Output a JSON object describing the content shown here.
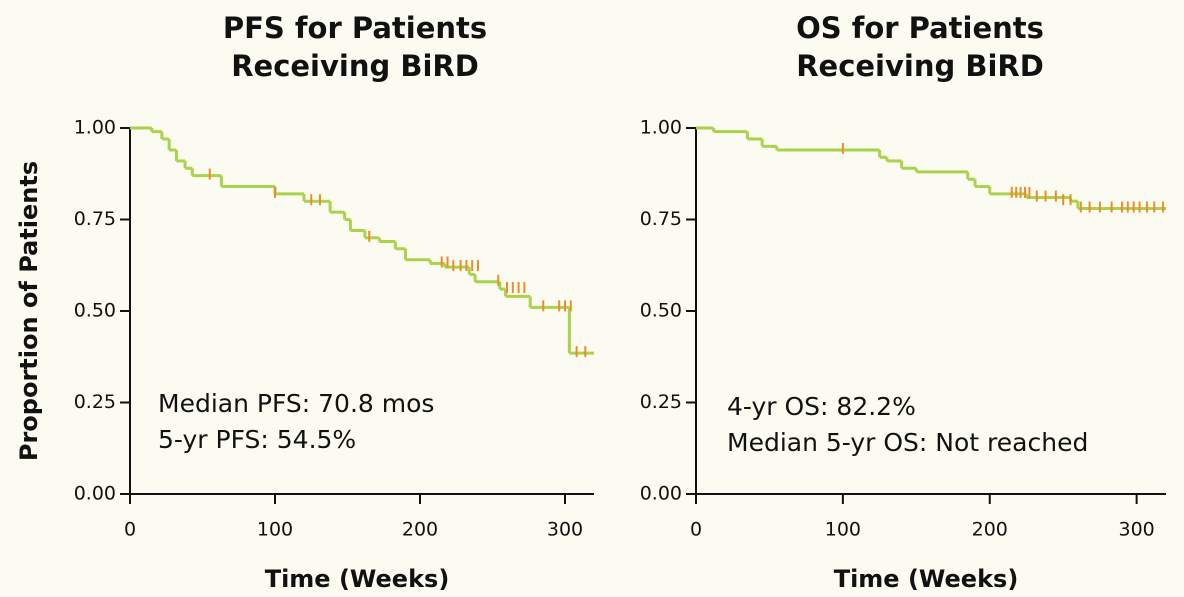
{
  "chart_data": [
    {
      "type": "step",
      "title": [
        "PFS for Patients",
        "Receiving BiRD"
      ],
      "xlabel": "Time (Weeks)",
      "ylabel": "Proportion of Patients",
      "annotations": [
        "Median PFS: 70.8 mos",
        "5-yr PFS: 54.5%"
      ],
      "color": "#a8d34a",
      "censor_color": "#f08a2c",
      "x": [
        0,
        15,
        22,
        27,
        32,
        38,
        43,
        63,
        100,
        120,
        138,
        148,
        152,
        162,
        172,
        183,
        190,
        207,
        217,
        234,
        238,
        255,
        259,
        276,
        303,
        320
      ],
      "values": [
        1.0,
        0.99,
        0.97,
        0.94,
        0.91,
        0.89,
        0.87,
        0.84,
        0.82,
        0.8,
        0.77,
        0.75,
        0.72,
        0.7,
        0.69,
        0.67,
        0.64,
        0.63,
        0.62,
        0.6,
        0.58,
        0.56,
        0.54,
        0.51,
        0.385,
        0.385
      ],
      "censored": {
        "x": [
          55,
          100,
          125,
          131,
          165,
          215,
          219,
          223,
          228,
          232,
          236,
          240,
          254,
          260,
          264,
          268,
          272,
          285,
          296,
          300,
          304,
          308,
          314
        ],
        "values": [
          0.87,
          0.82,
          0.8,
          0.8,
          0.7,
          0.63,
          0.63,
          0.62,
          0.62,
          0.62,
          0.62,
          0.62,
          0.58,
          0.56,
          0.56,
          0.56,
          0.56,
          0.51,
          0.51,
          0.51,
          0.51,
          0.385,
          0.385
        ]
      },
      "xlim": [
        0,
        320
      ],
      "ylim": [
        0,
        1
      ],
      "xticks": [
        0,
        100,
        200,
        300
      ],
      "yticks": [
        {
          "value": 0,
          "label": "0.00"
        },
        {
          "value": 0.25,
          "label": "0.25"
        },
        {
          "value": 0.5,
          "label": "0.50"
        },
        {
          "value": 0.75,
          "label": "0.75"
        },
        {
          "value": 1,
          "label": "1.00"
        }
      ]
    },
    {
      "type": "step",
      "title": [
        "OS for Patients",
        "Receiving BiRD"
      ],
      "xlabel": "Time (Weeks)",
      "annotations": [
        "4-yr OS: 82.2%",
        "Median 5-yr OS: Not reached"
      ],
      "color": "#a8d34a",
      "censor_color": "#f08a2c",
      "x": [
        0,
        12,
        35,
        45,
        55,
        125,
        130,
        140,
        150,
        185,
        190,
        200,
        210,
        225,
        255,
        260,
        320
      ],
      "values": [
        1.0,
        0.99,
        0.97,
        0.95,
        0.94,
        0.92,
        0.91,
        0.89,
        0.88,
        0.86,
        0.84,
        0.82,
        0.82,
        0.81,
        0.8,
        0.78,
        0.78
      ],
      "censored": {
        "x": [
          100,
          215,
          218,
          221,
          224,
          227,
          232,
          238,
          245,
          250,
          255,
          262,
          268,
          275,
          283,
          290,
          294,
          298,
          302,
          307,
          312,
          318
        ],
        "values": [
          0.94,
          0.82,
          0.82,
          0.82,
          0.82,
          0.82,
          0.81,
          0.81,
          0.81,
          0.8,
          0.8,
          0.78,
          0.78,
          0.78,
          0.78,
          0.78,
          0.78,
          0.78,
          0.78,
          0.78,
          0.78,
          0.78
        ]
      },
      "xlim": [
        0,
        320
      ],
      "ylim": [
        0,
        1
      ],
      "xticks": [
        0,
        100,
        200,
        300
      ],
      "yticks": [
        {
          "value": 0,
          "label": "0.00"
        },
        {
          "value": 0.25,
          "label": "0.25"
        },
        {
          "value": 0.5,
          "label": "0.50"
        },
        {
          "value": 0.75,
          "label": "0.75"
        },
        {
          "value": 1,
          "label": "1.00"
        }
      ]
    }
  ]
}
